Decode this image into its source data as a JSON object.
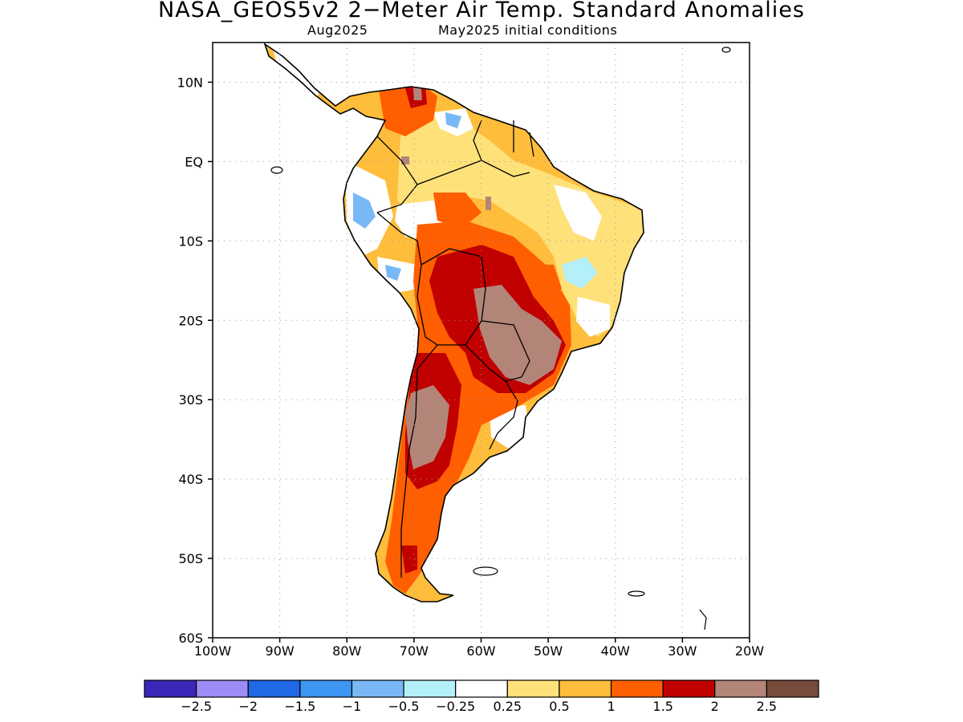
{
  "title": "NASA_GEOS5v2 2−Meter Air Temp. Standard Anomalies",
  "subtitle_left": "Aug2025",
  "subtitle_right": "May2025 initial conditions",
  "map": {
    "lat_labels": [
      "10N",
      "EQ",
      "10S",
      "20S",
      "30S",
      "40S",
      "50S",
      "60S"
    ],
    "lon_labels": [
      "100W",
      "90W",
      "80W",
      "70W",
      "60W",
      "50W",
      "40W",
      "30W",
      "20W"
    ],
    "lat_range": [
      -60,
      15
    ],
    "lon_range": [
      -100,
      -20
    ],
    "grid": "dotted"
  },
  "colorbar": {
    "colors": [
      "#3a27b8",
      "#9d8cf5",
      "#2068e6",
      "#3c96f2",
      "#78b8f6",
      "#b4f0fa",
      "#ffffff",
      "#ffe17a",
      "#ffbd3c",
      "#ff5f00",
      "#c10000",
      "#b38578",
      "#774c3c"
    ],
    "labels": [
      "−2.5",
      "−2",
      "−1.5",
      "−1",
      "−0.5",
      "−0.25",
      "0.25",
      "0.5",
      "1",
      "1.5",
      "2",
      "2.5"
    ]
  }
}
